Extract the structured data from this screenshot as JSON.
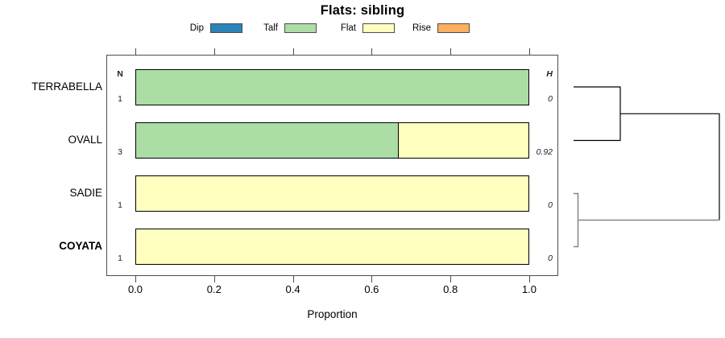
{
  "title": "Flats: sibling",
  "legend": {
    "items": [
      {
        "label": "Dip",
        "color": "#2B83BA"
      },
      {
        "label": "Talf",
        "color": "#ABDDA4"
      },
      {
        "label": "Flat",
        "color": "#FFFFBF"
      },
      {
        "label": "Rise",
        "color": "#FDAE61"
      }
    ]
  },
  "columns": {
    "n_header": "N",
    "h_header": "H"
  },
  "rows": [
    {
      "label": "TERRABELLA",
      "bold": false,
      "n": "1",
      "h": "0",
      "segments": [
        {
          "key": "Talf",
          "color": "#ABDDA4",
          "fraction": 1.0
        }
      ]
    },
    {
      "label": "OVALL",
      "bold": false,
      "n": "3",
      "h": "0.92",
      "segments": [
        {
          "key": "Talf",
          "color": "#ABDDA4",
          "fraction": 0.667
        },
        {
          "key": "Flat",
          "color": "#FFFFBF",
          "fraction": 0.333
        }
      ]
    },
    {
      "label": "SADIE",
      "bold": false,
      "n": "1",
      "h": "0",
      "segments": [
        {
          "key": "Flat",
          "color": "#FFFFBF",
          "fraction": 1.0
        }
      ]
    },
    {
      "label": "COYATA",
      "bold": true,
      "n": "1",
      "h": "0",
      "segments": [
        {
          "key": "Flat",
          "color": "#FFFFBF",
          "fraction": 1.0
        }
      ]
    }
  ],
  "axis": {
    "label": "Proportion",
    "ticks": [
      "0.0",
      "0.2",
      "0.4",
      "0.6",
      "0.8",
      "1.0"
    ]
  },
  "chart_data": {
    "type": "bar",
    "subtype": "horizontal-stacked-proportion-with-dendrogram",
    "title": "Flats: sibling",
    "xlabel": "Proportion",
    "xlim": [
      0,
      1
    ],
    "xticks": [
      0.0,
      0.2,
      0.4,
      0.6,
      0.8,
      1.0
    ],
    "categories": [
      "TERRABELLA",
      "OVALL",
      "SADIE",
      "COYATA"
    ],
    "legend_entries": [
      "Dip",
      "Talf",
      "Flat",
      "Rise"
    ],
    "legend_colors": [
      "#2B83BA",
      "#ABDDA4",
      "#FFFFBF",
      "#FDAE61"
    ],
    "legend_position": "top",
    "series": [
      {
        "name": "Dip",
        "values": [
          0,
          0,
          0,
          0
        ]
      },
      {
        "name": "Talf",
        "values": [
          1,
          0.667,
          0,
          0
        ]
      },
      {
        "name": "Flat",
        "values": [
          0,
          0.333,
          1,
          1
        ]
      },
      {
        "name": "Rise",
        "values": [
          0,
          0,
          0,
          0
        ]
      }
    ],
    "N_column": [
      1,
      3,
      1,
      1
    ],
    "H_column": [
      0,
      0.92,
      0,
      0
    ],
    "grid": false,
    "dendrogram": {
      "position": "right",
      "clusters": [
        {
          "members": [
            "TERRABELLA",
            "OVALL"
          ],
          "relative_merge_height": "medium",
          "color": "black"
        },
        {
          "members": [
            "SADIE",
            "COYATA"
          ],
          "relative_merge_height": "near-zero",
          "color": "gray"
        }
      ],
      "root": {
        "joins": [
          "TERRABELLA+OVALL",
          "SADIE+COYATA"
        ],
        "relative_merge_height": "max"
      }
    }
  }
}
